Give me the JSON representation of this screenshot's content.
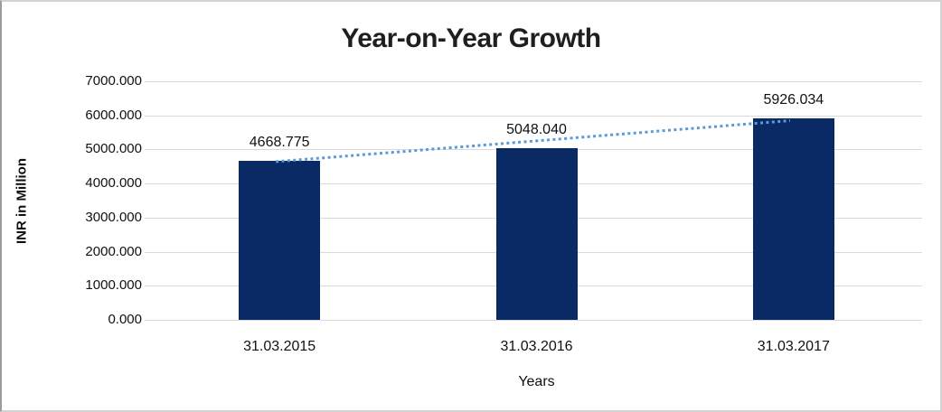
{
  "chart_data": {
    "type": "bar",
    "title": "Year-on-Year Growth",
    "xlabel": "Years",
    "ylabel": "INR in Million",
    "categories": [
      "31.03.2015",
      "31.03.2016",
      "31.03.2017"
    ],
    "values": [
      4668.775,
      5048.04,
      5926.034
    ],
    "data_labels": [
      "4668.775",
      "5048.040",
      "5926.034"
    ],
    "ytick_labels": [
      "0.000",
      "1000.000",
      "2000.000",
      "3000.000",
      "4000.000",
      "5000.000",
      "6000.000",
      "7000.000"
    ],
    "ylim": [
      0,
      7000
    ],
    "ytick_step": 1000,
    "grid": "horizontal",
    "legend": "none",
    "bar_color": "#0A2A66",
    "gridline_color": "#D9D9D9",
    "trendline": {
      "style": "dotted",
      "color": "#5B9BD5",
      "from_value": 4668.775,
      "to_value": 5926.034
    }
  }
}
